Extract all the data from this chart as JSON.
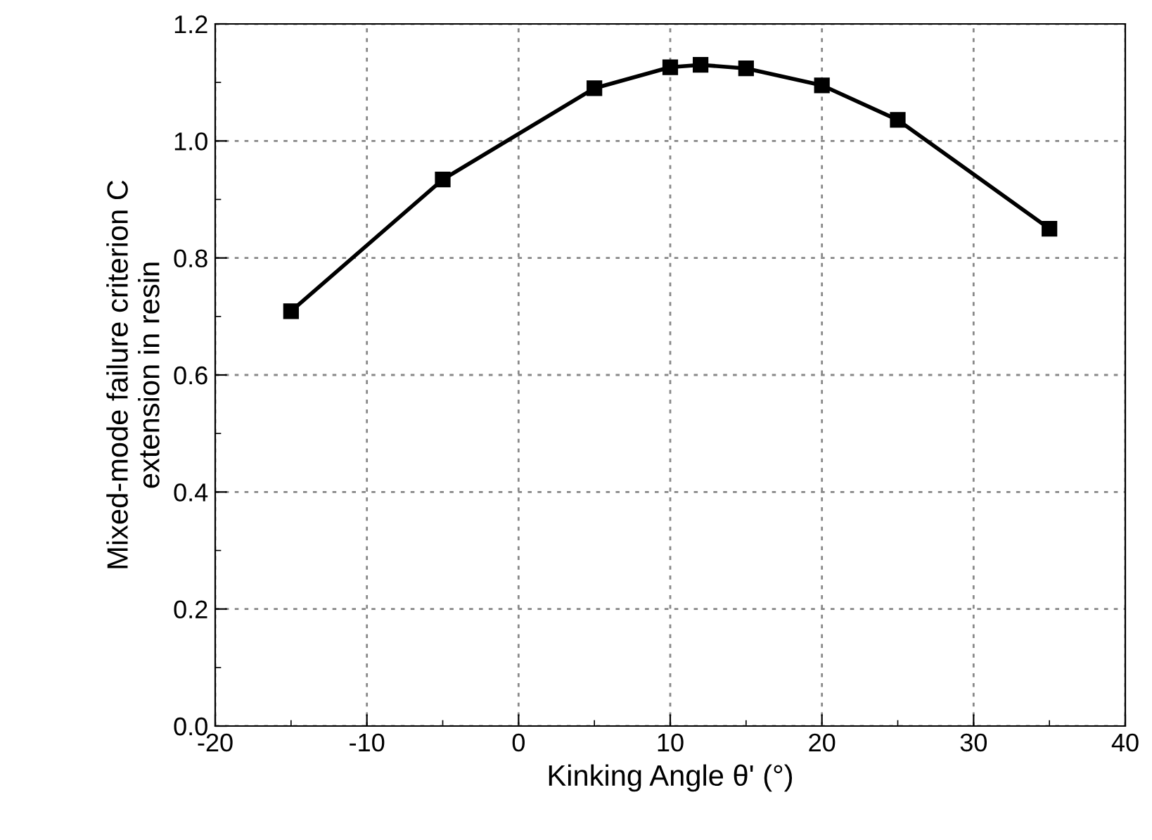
{
  "chart_data": {
    "type": "line",
    "xlabel": "Kinking Angle θ' (°)",
    "ylabel": "Mixed-mode failure criterion C\nextension in resin",
    "x": [
      -15,
      -5,
      5,
      10,
      12,
      15,
      20,
      25,
      35
    ],
    "series": [
      {
        "color": "#000000",
        "values": [
          0.709,
          0.934,
          1.09,
          1.126,
          1.13,
          1.124,
          1.095,
          1.036,
          0.85
        ]
      }
    ],
    "xlim": [
      -20,
      40
    ],
    "xticks": [
      -20,
      -10,
      0,
      10,
      20,
      30,
      40
    ],
    "ylim": [
      0.0,
      1.2
    ],
    "yticks": [
      {
        "value": 0.0,
        "label": "0.0"
      },
      {
        "value": 0.2,
        "label": "0.2"
      },
      {
        "value": 0.4,
        "label": "0.4"
      },
      {
        "value": 0.6,
        "label": "0.6"
      },
      {
        "value": 0.8,
        "label": "0.8"
      },
      {
        "value": 1.0,
        "label": "1.0"
      },
      {
        "value": 1.2,
        "label": "1.2"
      }
    ],
    "grid": true,
    "marker": "square",
    "line_style": "solid"
  }
}
